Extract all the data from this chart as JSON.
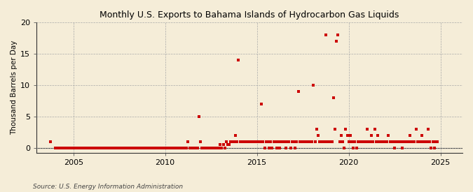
{
  "title": "Monthly U.S. Exports to Bahama Islands of Hydrocarbon Gas Liquids",
  "ylabel": "Thousand Barrels per Day",
  "source": "Source: U.S. Energy Information Administration",
  "fig_background_color": "#f5edd8",
  "plot_background_color": "#f5edd8",
  "marker_color": "#cc0000",
  "grid_color": "#aaaaaa",
  "xlim": [
    2003.0,
    2026.2
  ],
  "ylim": [
    -0.8,
    20
  ],
  "yticks": [
    0,
    5,
    10,
    15,
    20
  ],
  "xticks": [
    2005,
    2010,
    2015,
    2020,
    2025
  ],
  "data_points": [
    [
      2003.75,
      1.0
    ],
    [
      2004.0,
      0.0
    ],
    [
      2004.08,
      0.0
    ],
    [
      2004.17,
      0.0
    ],
    [
      2004.25,
      0.0
    ],
    [
      2004.33,
      0.0
    ],
    [
      2004.42,
      0.0
    ],
    [
      2004.5,
      0.0
    ],
    [
      2004.58,
      0.0
    ],
    [
      2004.67,
      0.0
    ],
    [
      2004.75,
      0.0
    ],
    [
      2004.83,
      0.0
    ],
    [
      2004.92,
      0.0
    ],
    [
      2005.0,
      0.0
    ],
    [
      2005.08,
      0.0
    ],
    [
      2005.17,
      0.0
    ],
    [
      2005.25,
      0.0
    ],
    [
      2005.33,
      0.0
    ],
    [
      2005.42,
      0.0
    ],
    [
      2005.5,
      0.0
    ],
    [
      2005.58,
      0.0
    ],
    [
      2005.67,
      0.0
    ],
    [
      2005.75,
      0.0
    ],
    [
      2005.83,
      0.0
    ],
    [
      2005.92,
      0.0
    ],
    [
      2006.0,
      0.0
    ],
    [
      2006.08,
      0.0
    ],
    [
      2006.17,
      0.0
    ],
    [
      2006.25,
      0.0
    ],
    [
      2006.33,
      0.0
    ],
    [
      2006.42,
      0.0
    ],
    [
      2006.5,
      0.0
    ],
    [
      2006.58,
      0.0
    ],
    [
      2006.67,
      0.0
    ],
    [
      2006.75,
      0.0
    ],
    [
      2006.83,
      0.0
    ],
    [
      2006.92,
      0.0
    ],
    [
      2007.0,
      0.0
    ],
    [
      2007.08,
      0.0
    ],
    [
      2007.17,
      0.0
    ],
    [
      2007.25,
      0.0
    ],
    [
      2007.33,
      0.0
    ],
    [
      2007.42,
      0.0
    ],
    [
      2007.5,
      0.0
    ],
    [
      2007.58,
      0.0
    ],
    [
      2007.67,
      0.0
    ],
    [
      2007.75,
      0.0
    ],
    [
      2007.83,
      0.0
    ],
    [
      2007.92,
      0.0
    ],
    [
      2008.0,
      0.0
    ],
    [
      2008.08,
      0.0
    ],
    [
      2008.17,
      0.0
    ],
    [
      2008.25,
      0.0
    ],
    [
      2008.33,
      0.0
    ],
    [
      2008.42,
      0.0
    ],
    [
      2008.5,
      0.0
    ],
    [
      2008.58,
      0.0
    ],
    [
      2008.67,
      0.0
    ],
    [
      2008.75,
      0.0
    ],
    [
      2008.83,
      0.0
    ],
    [
      2008.92,
      0.0
    ],
    [
      2009.0,
      0.0
    ],
    [
      2009.08,
      0.0
    ],
    [
      2009.17,
      0.0
    ],
    [
      2009.25,
      0.0
    ],
    [
      2009.33,
      0.0
    ],
    [
      2009.42,
      0.0
    ],
    [
      2009.5,
      0.0
    ],
    [
      2009.58,
      0.0
    ],
    [
      2009.67,
      0.0
    ],
    [
      2009.75,
      0.0
    ],
    [
      2009.83,
      0.0
    ],
    [
      2009.92,
      0.0
    ],
    [
      2010.0,
      0.0
    ],
    [
      2010.08,
      0.0
    ],
    [
      2010.17,
      0.0
    ],
    [
      2010.25,
      0.0
    ],
    [
      2010.33,
      0.0
    ],
    [
      2010.42,
      0.0
    ],
    [
      2010.5,
      0.0
    ],
    [
      2010.58,
      0.0
    ],
    [
      2010.67,
      0.0
    ],
    [
      2010.75,
      0.0
    ],
    [
      2010.83,
      0.0
    ],
    [
      2010.92,
      0.0
    ],
    [
      2011.0,
      0.0
    ],
    [
      2011.08,
      0.0
    ],
    [
      2011.17,
      0.0
    ],
    [
      2011.25,
      1.0
    ],
    [
      2011.33,
      0.0
    ],
    [
      2011.42,
      0.0
    ],
    [
      2011.5,
      0.0
    ],
    [
      2011.58,
      0.0
    ],
    [
      2011.67,
      0.0
    ],
    [
      2011.75,
      0.0
    ],
    [
      2011.83,
      5.0
    ],
    [
      2011.92,
      1.0
    ],
    [
      2012.0,
      0.0
    ],
    [
      2012.08,
      0.0
    ],
    [
      2012.17,
      0.0
    ],
    [
      2012.25,
      0.0
    ],
    [
      2012.33,
      0.0
    ],
    [
      2012.42,
      0.0
    ],
    [
      2012.5,
      0.0
    ],
    [
      2012.58,
      0.0
    ],
    [
      2012.67,
      0.0
    ],
    [
      2012.75,
      0.0
    ],
    [
      2012.83,
      0.0
    ],
    [
      2012.92,
      0.0
    ],
    [
      2013.0,
      0.5
    ],
    [
      2013.08,
      0.0
    ],
    [
      2013.17,
      0.5
    ],
    [
      2013.25,
      0.0
    ],
    [
      2013.33,
      1.0
    ],
    [
      2013.42,
      0.5
    ],
    [
      2013.5,
      0.5
    ],
    [
      2013.58,
      1.0
    ],
    [
      2013.67,
      1.0
    ],
    [
      2013.75,
      1.0
    ],
    [
      2013.83,
      2.0
    ],
    [
      2013.92,
      1.0
    ],
    [
      2014.0,
      14.0
    ],
    [
      2014.08,
      1.0
    ],
    [
      2014.17,
      1.0
    ],
    [
      2014.25,
      1.0
    ],
    [
      2014.33,
      1.0
    ],
    [
      2014.42,
      1.0
    ],
    [
      2014.5,
      1.0
    ],
    [
      2014.58,
      1.0
    ],
    [
      2014.67,
      1.0
    ],
    [
      2014.75,
      1.0
    ],
    [
      2014.83,
      1.0
    ],
    [
      2014.92,
      1.0
    ],
    [
      2015.0,
      1.0
    ],
    [
      2015.08,
      1.0
    ],
    [
      2015.17,
      1.0
    ],
    [
      2015.25,
      7.0
    ],
    [
      2015.33,
      1.0
    ],
    [
      2015.42,
      0.0
    ],
    [
      2015.5,
      1.0
    ],
    [
      2015.58,
      1.0
    ],
    [
      2015.67,
      0.0
    ],
    [
      2015.75,
      1.0
    ],
    [
      2015.83,
      0.0
    ],
    [
      2015.92,
      1.0
    ],
    [
      2016.0,
      1.0
    ],
    [
      2016.08,
      0.0
    ],
    [
      2016.17,
      1.0
    ],
    [
      2016.25,
      0.0
    ],
    [
      2016.33,
      1.0
    ],
    [
      2016.42,
      1.0
    ],
    [
      2016.5,
      1.0
    ],
    [
      2016.58,
      0.0
    ],
    [
      2016.67,
      1.0
    ],
    [
      2016.75,
      1.0
    ],
    [
      2016.83,
      0.0
    ],
    [
      2016.92,
      1.0
    ],
    [
      2017.0,
      1.0
    ],
    [
      2017.08,
      0.0
    ],
    [
      2017.17,
      1.0
    ],
    [
      2017.25,
      9.0
    ],
    [
      2017.33,
      1.0
    ],
    [
      2017.42,
      1.0
    ],
    [
      2017.5,
      1.0
    ],
    [
      2017.58,
      1.0
    ],
    [
      2017.67,
      1.0
    ],
    [
      2017.75,
      1.0
    ],
    [
      2017.83,
      1.0
    ],
    [
      2017.92,
      1.0
    ],
    [
      2018.0,
      1.0
    ],
    [
      2018.08,
      10.0
    ],
    [
      2018.17,
      1.0
    ],
    [
      2018.25,
      3.0
    ],
    [
      2018.33,
      2.0
    ],
    [
      2018.42,
      1.0
    ],
    [
      2018.5,
      1.0
    ],
    [
      2018.58,
      1.0
    ],
    [
      2018.67,
      1.0
    ],
    [
      2018.75,
      18.0
    ],
    [
      2018.83,
      1.0
    ],
    [
      2018.92,
      1.0
    ],
    [
      2019.0,
      1.0
    ],
    [
      2019.08,
      1.0
    ],
    [
      2019.17,
      8.0
    ],
    [
      2019.25,
      3.0
    ],
    [
      2019.33,
      17.0
    ],
    [
      2019.42,
      18.0
    ],
    [
      2019.5,
      1.0
    ],
    [
      2019.58,
      2.0
    ],
    [
      2019.67,
      1.0
    ],
    [
      2019.75,
      0.0
    ],
    [
      2019.83,
      3.0
    ],
    [
      2019.92,
      2.0
    ],
    [
      2020.0,
      1.0
    ],
    [
      2020.08,
      2.0
    ],
    [
      2020.17,
      1.0
    ],
    [
      2020.25,
      0.0
    ],
    [
      2020.33,
      1.0
    ],
    [
      2020.42,
      0.0
    ],
    [
      2020.5,
      1.0
    ],
    [
      2020.58,
      1.0
    ],
    [
      2020.67,
      1.0
    ],
    [
      2020.75,
      1.0
    ],
    [
      2020.83,
      1.0
    ],
    [
      2020.92,
      1.0
    ],
    [
      2021.0,
      3.0
    ],
    [
      2021.08,
      1.0
    ],
    [
      2021.17,
      1.0
    ],
    [
      2021.25,
      2.0
    ],
    [
      2021.33,
      1.0
    ],
    [
      2021.42,
      3.0
    ],
    [
      2021.5,
      1.0
    ],
    [
      2021.58,
      2.0
    ],
    [
      2021.67,
      1.0
    ],
    [
      2021.75,
      1.0
    ],
    [
      2021.83,
      1.0
    ],
    [
      2021.92,
      1.0
    ],
    [
      2022.0,
      1.0
    ],
    [
      2022.08,
      1.0
    ],
    [
      2022.17,
      2.0
    ],
    [
      2022.25,
      1.0
    ],
    [
      2022.33,
      1.0
    ],
    [
      2022.42,
      1.0
    ],
    [
      2022.5,
      0.0
    ],
    [
      2022.58,
      1.0
    ],
    [
      2022.67,
      1.0
    ],
    [
      2022.75,
      1.0
    ],
    [
      2022.83,
      1.0
    ],
    [
      2022.92,
      0.0
    ],
    [
      2023.0,
      1.0
    ],
    [
      2023.08,
      1.0
    ],
    [
      2023.17,
      1.0
    ],
    [
      2023.25,
      1.0
    ],
    [
      2023.33,
      2.0
    ],
    [
      2023.42,
      1.0
    ],
    [
      2023.5,
      1.0
    ],
    [
      2023.58,
      1.0
    ],
    [
      2023.67,
      3.0
    ],
    [
      2023.75,
      1.0
    ],
    [
      2023.83,
      1.0
    ],
    [
      2023.92,
      1.0
    ],
    [
      2024.0,
      2.0
    ],
    [
      2024.08,
      1.0
    ],
    [
      2024.17,
      1.0
    ],
    [
      2024.25,
      1.0
    ],
    [
      2024.33,
      3.0
    ],
    [
      2024.42,
      1.0
    ],
    [
      2024.5,
      0.0
    ],
    [
      2024.58,
      1.0
    ],
    [
      2024.67,
      0.0
    ],
    [
      2024.75,
      1.0
    ],
    [
      2024.83,
      1.0
    ]
  ]
}
